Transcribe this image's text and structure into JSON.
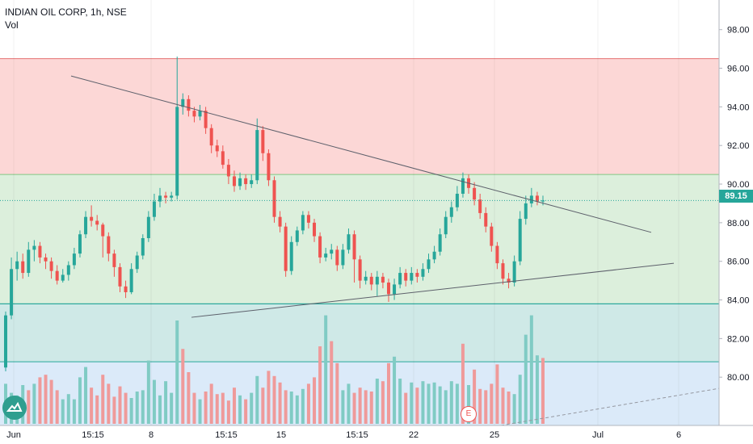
{
  "legend": {
    "symbol": "INDIAN OIL CORP, 1h, NSE",
    "volume": "Vol"
  },
  "last_price": "89.15",
  "earnings_badge": "E",
  "colors": {
    "up": "#26a69a",
    "down": "#ef5350",
    "volume_up": "#80cbc4",
    "volume_down": "#ef9a9a",
    "zone_red": "#fcd7d6",
    "zone_green": "#dcefdc",
    "zone_teal": "#cfe9e7",
    "zone_blue": "#dbeaf9"
  },
  "chart_data": {
    "type": "candlestick",
    "title": "INDIAN OIL CORP, 1h, NSE",
    "ylim": [
      77.5,
      99.2
    ],
    "y_ticks": [
      "98.00",
      "96.00",
      "94.00",
      "92.00",
      "90.00",
      "88.00",
      "86.00",
      "84.00",
      "82.00",
      "80.00"
    ],
    "x_ticks": [
      "Jun",
      "15:15",
      "8",
      "15:15",
      "15",
      "15:15",
      "22",
      "25",
      "Jul",
      "6"
    ],
    "zones": [
      {
        "name": "red",
        "from": 90.5,
        "to": 96.5
      },
      {
        "name": "green",
        "from": 83.8,
        "to": 90.5
      },
      {
        "name": "teal",
        "from": 80.8,
        "to": 83.8
      }
    ],
    "trendlines": [
      {
        "from": [
          0,
          95.6
        ],
        "to": [
          1,
          87.5
        ]
      },
      {
        "from": [
          0,
          83.1
        ],
        "to": [
          1,
          85.9
        ]
      }
    ],
    "last_price": 89.15,
    "candles": [
      [
        80.5,
        83.2,
        80.3,
        83.4
      ],
      [
        83.2,
        85.6,
        83.0,
        86.2
      ],
      [
        85.6,
        86.0,
        85.0,
        86.5
      ],
      [
        86.0,
        85.4,
        85.1,
        86.4
      ],
      [
        85.4,
        86.6,
        85.2,
        87.0
      ],
      [
        86.6,
        86.8,
        86.0,
        87.1
      ],
      [
        86.8,
        86.2,
        85.9,
        87.0
      ],
      [
        86.2,
        86.0,
        85.6,
        86.4
      ],
      [
        86.0,
        85.5,
        85.1,
        86.2
      ],
      [
        85.5,
        85.0,
        84.8,
        85.8
      ],
      [
        85.0,
        85.3,
        84.9,
        85.6
      ],
      [
        85.3,
        85.8,
        85.0,
        86.0
      ],
      [
        85.8,
        86.4,
        85.6,
        86.7
      ],
      [
        86.4,
        87.4,
        86.2,
        87.6
      ],
      [
        87.4,
        88.3,
        87.2,
        88.6
      ],
      [
        88.3,
        88.1,
        87.8,
        88.9
      ],
      [
        88.1,
        87.9,
        87.6,
        88.4
      ],
      [
        87.9,
        87.3,
        86.2,
        88.0
      ],
      [
        87.3,
        86.4,
        86.0,
        87.5
      ],
      [
        86.4,
        85.7,
        85.2,
        86.6
      ],
      [
        85.7,
        84.7,
        84.4,
        85.9
      ],
      [
        84.7,
        84.4,
        84.1,
        85.0
      ],
      [
        84.4,
        85.6,
        84.3,
        85.9
      ],
      [
        85.6,
        86.3,
        85.4,
        86.5
      ],
      [
        86.3,
        87.2,
        86.1,
        87.4
      ],
      [
        87.2,
        88.3,
        87.0,
        88.6
      ],
      [
        88.3,
        89.1,
        88.1,
        89.5
      ],
      [
        89.1,
        89.4,
        88.8,
        89.8
      ],
      [
        89.4,
        89.3,
        89.0,
        89.6
      ],
      [
        89.3,
        89.4,
        89.1,
        89.6
      ],
      [
        89.4,
        94.0,
        89.2,
        96.6
      ],
      [
        94.0,
        94.4,
        93.6,
        94.7
      ],
      [
        94.4,
        93.8,
        93.5,
        94.6
      ],
      [
        93.8,
        93.5,
        93.2,
        94.0
      ],
      [
        93.5,
        93.8,
        93.3,
        94.1
      ],
      [
        93.8,
        92.9,
        92.6,
        94.0
      ],
      [
        92.9,
        92.0,
        91.6,
        93.1
      ],
      [
        92.0,
        91.7,
        91.4,
        92.3
      ],
      [
        91.7,
        91.0,
        90.8,
        92.0
      ],
      [
        91.0,
        90.4,
        90.0,
        91.3
      ],
      [
        90.4,
        89.9,
        89.6,
        90.7
      ],
      [
        89.9,
        90.3,
        89.7,
        90.6
      ],
      [
        90.3,
        90.0,
        89.7,
        90.5
      ],
      [
        90.0,
        90.2,
        89.8,
        90.5
      ],
      [
        90.2,
        92.8,
        90.0,
        93.4
      ],
      [
        92.8,
        91.6,
        91.2,
        93.0
      ],
      [
        91.6,
        90.2,
        89.9,
        91.8
      ],
      [
        90.2,
        88.3,
        88.0,
        90.4
      ],
      [
        88.3,
        87.8,
        87.5,
        88.6
      ],
      [
        87.8,
        85.5,
        85.2,
        88.0
      ],
      [
        85.5,
        87.0,
        85.3,
        87.3
      ],
      [
        87.0,
        87.6,
        86.8,
        87.8
      ],
      [
        87.6,
        88.4,
        87.4,
        88.6
      ],
      [
        88.4,
        88.0,
        87.7,
        88.6
      ],
      [
        88.0,
        87.3,
        87.0,
        88.2
      ],
      [
        87.3,
        86.2,
        85.9,
        87.5
      ],
      [
        86.2,
        86.4,
        86.0,
        86.7
      ],
      [
        86.4,
        86.6,
        86.1,
        86.9
      ],
      [
        86.6,
        85.8,
        85.5,
        86.8
      ],
      [
        85.8,
        86.6,
        85.6,
        86.9
      ],
      [
        86.6,
        87.4,
        86.4,
        87.7
      ],
      [
        87.4,
        86.1,
        84.9,
        87.6
      ],
      [
        86.1,
        85.0,
        84.6,
        86.3
      ],
      [
        85.0,
        85.2,
        84.8,
        85.5
      ],
      [
        85.2,
        84.8,
        84.5,
        85.4
      ],
      [
        84.8,
        85.2,
        84.2,
        85.5
      ],
      [
        85.2,
        84.9,
        84.6,
        85.4
      ],
      [
        84.9,
        84.3,
        83.9,
        85.1
      ],
      [
        84.3,
        84.8,
        84.0,
        85.1
      ],
      [
        84.8,
        85.4,
        84.6,
        85.7
      ],
      [
        85.4,
        85.0,
        84.7,
        85.6
      ],
      [
        85.0,
        85.4,
        84.8,
        85.7
      ],
      [
        85.4,
        85.2,
        84.9,
        85.6
      ],
      [
        85.2,
        85.6,
        85.0,
        85.9
      ],
      [
        85.6,
        86.1,
        85.4,
        86.4
      ],
      [
        86.1,
        86.5,
        85.9,
        86.8
      ],
      [
        86.5,
        87.4,
        86.3,
        87.7
      ],
      [
        87.4,
        88.3,
        87.2,
        88.6
      ],
      [
        88.3,
        88.8,
        88.0,
        89.1
      ],
      [
        88.8,
        89.5,
        88.6,
        89.9
      ],
      [
        89.5,
        90.3,
        89.3,
        90.6
      ],
      [
        90.3,
        89.8,
        89.5,
        90.5
      ],
      [
        89.8,
        89.2,
        88.9,
        90.1
      ],
      [
        89.2,
        88.5,
        88.2,
        89.5
      ],
      [
        88.5,
        87.8,
        87.5,
        88.8
      ],
      [
        87.8,
        86.8,
        86.5,
        88.0
      ],
      [
        86.8,
        85.9,
        85.6,
        87.0
      ],
      [
        85.9,
        85.1,
        84.8,
        86.1
      ],
      [
        85.1,
        84.9,
        84.6,
        85.4
      ],
      [
        84.9,
        86.0,
        84.7,
        86.3
      ],
      [
        86.0,
        88.2,
        85.8,
        88.6
      ],
      [
        88.2,
        89.0,
        87.9,
        89.4
      ],
      [
        89.0,
        89.4,
        88.8,
        89.8
      ],
      [
        89.4,
        89.1,
        88.9,
        89.6
      ],
      [
        89.1,
        89.15,
        88.9,
        89.4
      ]
    ],
    "volumes": [
      [
        31,
        1
      ],
      [
        24,
        1
      ],
      [
        22,
        1
      ],
      [
        30,
        1
      ],
      [
        26,
        0
      ],
      [
        31,
        1
      ],
      [
        36,
        0
      ],
      [
        38,
        0
      ],
      [
        34,
        0
      ],
      [
        26,
        0
      ],
      [
        19,
        1
      ],
      [
        23,
        1
      ],
      [
        19,
        1
      ],
      [
        36,
        1
      ],
      [
        44,
        1
      ],
      [
        28,
        0
      ],
      [
        22,
        0
      ],
      [
        38,
        0
      ],
      [
        31,
        0
      ],
      [
        21,
        0
      ],
      [
        29,
        0
      ],
      [
        24,
        0
      ],
      [
        20,
        1
      ],
      [
        25,
        1
      ],
      [
        26,
        1
      ],
      [
        49,
        1
      ],
      [
        34,
        1
      ],
      [
        22,
        1
      ],
      [
        33,
        1
      ],
      [
        24,
        1
      ],
      [
        80,
        1
      ],
      [
        58,
        0
      ],
      [
        40,
        0
      ],
      [
        24,
        0
      ],
      [
        19,
        1
      ],
      [
        25,
        0
      ],
      [
        31,
        0
      ],
      [
        23,
        0
      ],
      [
        24,
        0
      ],
      [
        18,
        0
      ],
      [
        28,
        0
      ],
      [
        22,
        1
      ],
      [
        19,
        0
      ],
      [
        24,
        1
      ],
      [
        37,
        1
      ],
      [
        28,
        0
      ],
      [
        41,
        0
      ],
      [
        37,
        0
      ],
      [
        32,
        0
      ],
      [
        26,
        0
      ],
      [
        25,
        1
      ],
      [
        22,
        1
      ],
      [
        27,
        1
      ],
      [
        31,
        0
      ],
      [
        36,
        0
      ],
      [
        60,
        0
      ],
      [
        84,
        1
      ],
      [
        64,
        0
      ],
      [
        47,
        0
      ],
      [
        26,
        1
      ],
      [
        31,
        1
      ],
      [
        24,
        0
      ],
      [
        28,
        0
      ],
      [
        26,
        0
      ],
      [
        25,
        0
      ],
      [
        35,
        1
      ],
      [
        33,
        0
      ],
      [
        47,
        0
      ],
      [
        52,
        1
      ],
      [
        35,
        1
      ],
      [
        24,
        0
      ],
      [
        32,
        1
      ],
      [
        28,
        0
      ],
      [
        33,
        1
      ],
      [
        31,
        1
      ],
      [
        32,
        1
      ],
      [
        29,
        1
      ],
      [
        26,
        1
      ],
      [
        33,
        1
      ],
      [
        31,
        1
      ],
      [
        62,
        0
      ],
      [
        30,
        1
      ],
      [
        42,
        0
      ],
      [
        27,
        0
      ],
      [
        26,
        0
      ],
      [
        31,
        0
      ],
      [
        46,
        0
      ],
      [
        28,
        0
      ],
      [
        25,
        0
      ],
      [
        23,
        1
      ],
      [
        38,
        1
      ],
      [
        69,
        1
      ],
      [
        84,
        1
      ],
      [
        53,
        1
      ],
      [
        51,
        0
      ]
    ]
  }
}
